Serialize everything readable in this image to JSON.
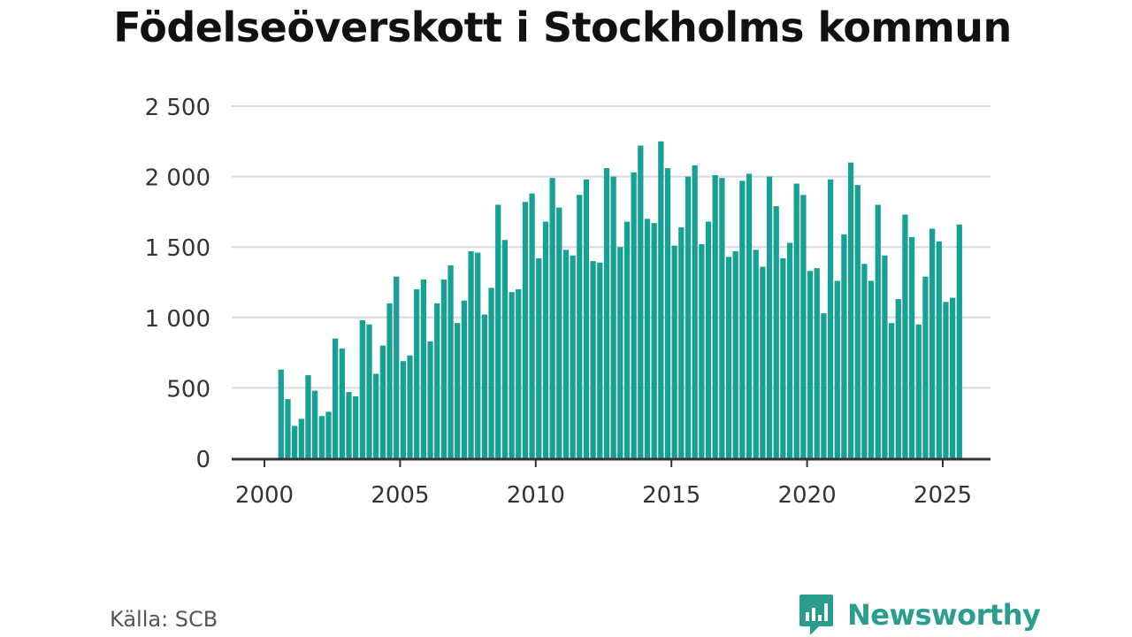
{
  "title": "Födelseöverskott i Stockholms kommun",
  "source": "Källa: SCB",
  "brand": {
    "name": "Newsworthy",
    "icon": "newsworthy-logo-icon",
    "color": "#2a9d8f"
  },
  "chart_data": {
    "type": "bar",
    "title": "Födelseöverskott i Stockholms kommun",
    "xlabel": "",
    "ylabel": "",
    "bar_color": "#17a094",
    "grid": true,
    "legend": "none",
    "ylim": [
      0,
      2500
    ],
    "yticks": [
      0,
      500,
      1000,
      1500,
      2000,
      2500
    ],
    "ytick_labels": [
      "0",
      "500",
      "1 000",
      "1 500",
      "2 000",
      "2 500"
    ],
    "xlim": [
      2000,
      2025.75
    ],
    "xticks": [
      2000,
      2005,
      2010,
      2015,
      2020,
      2025
    ],
    "xtick_labels": [
      "2000",
      "2005",
      "2010",
      "2015",
      "2020",
      "2025"
    ],
    "period": "quarterly",
    "start": "2000-Q2",
    "values": [
      630,
      420,
      230,
      280,
      590,
      480,
      300,
      330,
      850,
      780,
      470,
      440,
      980,
      950,
      600,
      800,
      1100,
      1290,
      690,
      730,
      1200,
      1270,
      830,
      1100,
      1270,
      1370,
      960,
      1120,
      1470,
      1460,
      1020,
      1210,
      1800,
      1550,
      1180,
      1200,
      1820,
      1880,
      1420,
      1680,
      1990,
      1780,
      1480,
      1440,
      1870,
      1980,
      1400,
      1390,
      2060,
      2000,
      1500,
      1680,
      2030,
      2220,
      1700,
      1670,
      2250,
      2060,
      1510,
      1640,
      2000,
      2080,
      1520,
      1680,
      2010,
      1990,
      1430,
      1470,
      1970,
      2020,
      1480,
      1360,
      2000,
      1790,
      1420,
      1530,
      1950,
      1870,
      1330,
      1350,
      1030,
      1980,
      1260,
      1590,
      2100,
      1940,
      1380,
      1260,
      1800,
      1440,
      960,
      1130,
      1730,
      1570,
      950,
      1290,
      1630,
      1540,
      1110,
      1140,
      1660
    ]
  }
}
